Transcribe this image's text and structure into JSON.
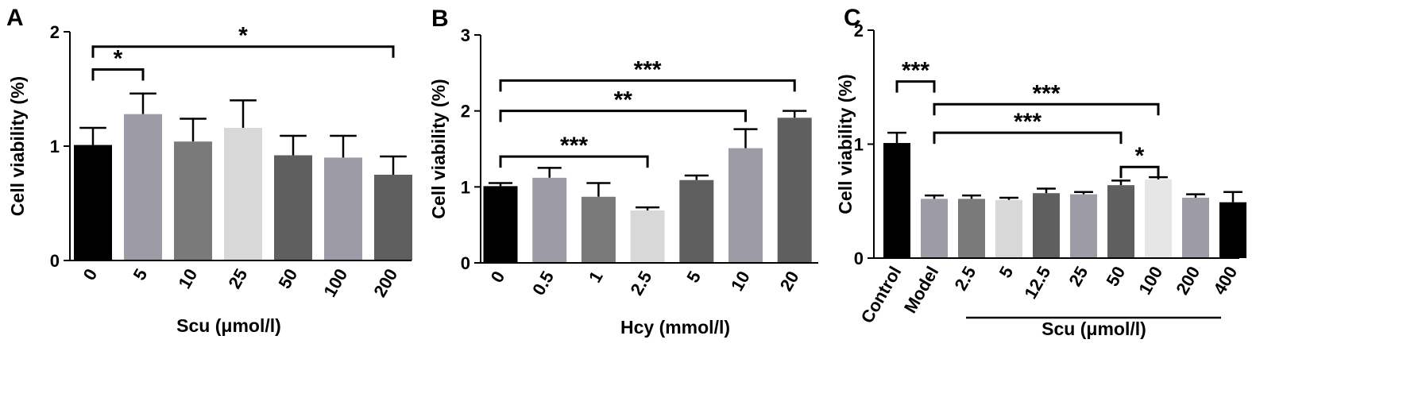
{
  "chart_data": [
    {
      "type": "bar",
      "panel": "A",
      "categories": [
        "0",
        "5",
        "10",
        "25",
        "50",
        "100",
        "200"
      ],
      "values": [
        1.01,
        1.28,
        1.04,
        1.16,
        0.92,
        0.9,
        0.75
      ],
      "errors": [
        0.15,
        0.18,
        0.2,
        0.24,
        0.17,
        0.19,
        0.16
      ],
      "colors": [
        "#000000",
        "#9d9ca6",
        "#7a7a7a",
        "#d8d8d8",
        "#5f5f5f",
        "#9d9ca6",
        "#5f5f5f"
      ],
      "ylabel": "Cell viability (%)",
      "xlabel": "Scu (μmol/l)",
      "ylim": [
        0,
        2
      ],
      "yticks": [
        "0",
        "1",
        "2"
      ],
      "significance": [
        {
          "from": 0,
          "to": 1,
          "label": "*",
          "level": 1.67
        },
        {
          "from": 0,
          "to": 6,
          "label": "*",
          "level": 1.87
        }
      ]
    },
    {
      "type": "bar",
      "panel": "B",
      "categories": [
        "0",
        "0.5",
        "1",
        "2.5",
        "5",
        "10",
        "20"
      ],
      "values": [
        1.01,
        1.12,
        0.87,
        0.69,
        1.09,
        1.51,
        1.91
      ],
      "errors": [
        0.04,
        0.13,
        0.18,
        0.04,
        0.06,
        0.25,
        0.09
      ],
      "colors": [
        "#000000",
        "#9d9ca6",
        "#7a7a7a",
        "#d8d8d8",
        "#5f5f5f",
        "#9d9ca6",
        "#5f5f5f"
      ],
      "ylabel": "Cell viability (%)",
      "xlabel": "Hcy (mmol/l)",
      "ylim": [
        0,
        3
      ],
      "yticks": [
        "0",
        "1",
        "2",
        "3"
      ],
      "significance": [
        {
          "from": 0,
          "to": 3,
          "label": "***",
          "level": 1.4
        },
        {
          "from": 0,
          "to": 5,
          "label": "**",
          "level": 2.0
        },
        {
          "from": 0,
          "to": 6,
          "label": "***",
          "level": 2.4
        }
      ]
    },
    {
      "type": "bar",
      "panel": "C",
      "categories": [
        "Control",
        "Model",
        "2.5",
        "5",
        "12.5",
        "25",
        "50",
        "100",
        "200",
        "400"
      ],
      "values": [
        1.01,
        0.52,
        0.52,
        0.51,
        0.57,
        0.56,
        0.64,
        0.69,
        0.53,
        0.49
      ],
      "errors": [
        0.09,
        0.03,
        0.03,
        0.02,
        0.04,
        0.02,
        0.04,
        0.02,
        0.03,
        0.09
      ],
      "colors": [
        "#000000",
        "#9d9ca6",
        "#7a7a7a",
        "#d8d8d8",
        "#5f5f5f",
        "#9d9ca6",
        "#5f5f5f",
        "#e6e6e6",
        "#9d9ca6",
        "#000000"
      ],
      "ylabel": "Cell viability (%)",
      "xlabel": "Scu (μmol/l)",
      "ylim": [
        0,
        2
      ],
      "yticks": [
        "0",
        "1",
        "2"
      ],
      "significance": [
        {
          "from": 0,
          "to": 1,
          "label": "***",
          "level": 1.55
        },
        {
          "from": 1,
          "to": 7,
          "label": "***",
          "level": 1.35
        },
        {
          "from": 1,
          "to": 6,
          "label": "***",
          "level": 1.1
        },
        {
          "from": 6,
          "to": 7,
          "label": "*",
          "level": 0.8
        }
      ]
    }
  ]
}
